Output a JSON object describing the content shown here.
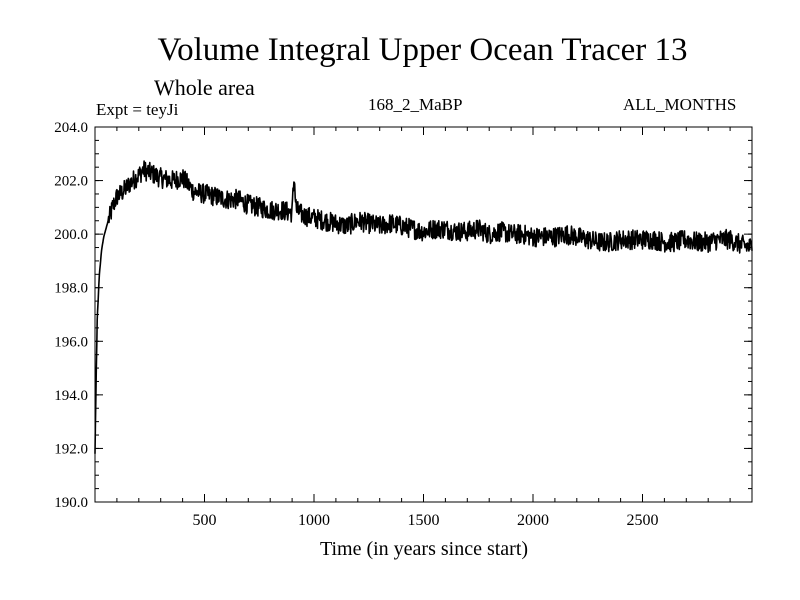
{
  "header": {
    "title": "Volume Integral Upper Ocean Tracer 13",
    "subtitle": "Whole area",
    "experiment": "Expt = teyJi",
    "run_label": "168_2_MaBP",
    "months_label": "ALL_MONTHS"
  },
  "chart_data": {
    "type": "line",
    "title": "Volume Integral Upper Ocean Tracer 13",
    "subtitle": "Whole area",
    "xlabel": "Time (in years since start)",
    "ylabel": "",
    "xlim": [
      0,
      3000
    ],
    "ylim": [
      190,
      204
    ],
    "x_ticks": [
      500,
      1000,
      1500,
      2000,
      2500
    ],
    "x_tick_labels": [
      "500",
      "1000",
      "1500",
      "2000",
      "2500"
    ],
    "y_ticks": [
      190,
      192,
      194,
      196,
      198,
      200,
      202,
      204
    ],
    "y_tick_labels": [
      "190.0",
      "192.0",
      "194.0",
      "196.0",
      "198.0",
      "200.0",
      "202.0",
      "204.0"
    ],
    "grid": false,
    "series": [
      {
        "name": "Tracer 13",
        "x": [
          0,
          5,
          10,
          20,
          30,
          40,
          50,
          60,
          70,
          80,
          100,
          130,
          160,
          200,
          220,
          250,
          300,
          350,
          400,
          450,
          500,
          550,
          600,
          650,
          700,
          750,
          800,
          850,
          900,
          905,
          910,
          915,
          920,
          950,
          1000,
          1050,
          1100,
          1150,
          1200,
          1250,
          1300,
          1350,
          1400,
          1450,
          1500,
          1550,
          1600,
          1650,
          1700,
          1750,
          1800,
          1850,
          1900,
          1950,
          2000,
          2050,
          2100,
          2150,
          2200,
          2250,
          2300,
          2350,
          2400,
          2450,
          2500,
          2550,
          2600,
          2650,
          2700,
          2750,
          2800,
          2850,
          2900,
          2950,
          3000
        ],
        "values": [
          191.8,
          194.5,
          196.8,
          198.5,
          199.4,
          199.9,
          200.2,
          200.5,
          200.7,
          201.0,
          201.4,
          201.6,
          201.9,
          202.2,
          202.4,
          202.3,
          202.1,
          202.0,
          202.1,
          201.6,
          201.5,
          201.4,
          201.3,
          201.3,
          201.1,
          201.0,
          200.9,
          200.9,
          200.8,
          201.6,
          202.2,
          201.3,
          200.9,
          200.7,
          200.6,
          200.5,
          200.4,
          200.3,
          200.5,
          200.4,
          200.3,
          200.4,
          200.3,
          200.2,
          200.1,
          200.2,
          200.2,
          200.1,
          200.1,
          200.2,
          200.0,
          200.1,
          200.0,
          200.0,
          199.9,
          199.9,
          199.9,
          200.0,
          199.9,
          199.8,
          199.7,
          199.7,
          199.8,
          199.8,
          199.8,
          199.8,
          199.7,
          199.7,
          199.8,
          199.7,
          199.7,
          199.8,
          199.8,
          199.6,
          199.5
        ]
      }
    ]
  }
}
